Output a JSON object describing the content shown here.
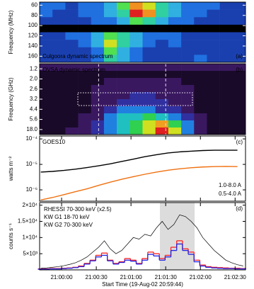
{
  "chart_data": [
    {
      "type": "heatmap",
      "title": "Culgoora dynamic spectrum",
      "panel_label": "(a)",
      "ylabel": "Frequency (MHz)",
      "ylim": [
        172,
        54
      ],
      "yticks": [
        60,
        80,
        100,
        120,
        140,
        160
      ],
      "colormap": [
        "#000000",
        "#101060",
        "#1a40b0",
        "#2070e0",
        "#30b0e0",
        "#30d0a0",
        "#50e050",
        "#d0e020",
        "#f09020",
        "#e02020"
      ],
      "z": [
        [
          3,
          3,
          2,
          3,
          3,
          4,
          6,
          8,
          7,
          5,
          4,
          3,
          3,
          3,
          2,
          2
        ],
        [
          3,
          2,
          2,
          3,
          3,
          4,
          5,
          9,
          8,
          5,
          4,
          3,
          3,
          2,
          2,
          2
        ],
        [
          2,
          2,
          2,
          2,
          3,
          3,
          4,
          6,
          5,
          4,
          3,
          3,
          2,
          2,
          2,
          2
        ],
        [
          0,
          0,
          0,
          0,
          0,
          0,
          0,
          0,
          0,
          0,
          0,
          0,
          0,
          0,
          0,
          0
        ],
        [
          2,
          2,
          3,
          3,
          4,
          6,
          5,
          4,
          3,
          3,
          3,
          2,
          2,
          2,
          2,
          2
        ],
        [
          2,
          2,
          2,
          3,
          4,
          7,
          5,
          4,
          3,
          2,
          3,
          2,
          2,
          2,
          2,
          2
        ],
        [
          2,
          2,
          2,
          2,
          3,
          6,
          4,
          3,
          2,
          2,
          2,
          2,
          2,
          2,
          2,
          2
        ],
        [
          2,
          2,
          2,
          2,
          3,
          5,
          4,
          3,
          2,
          2,
          2,
          2,
          3,
          2,
          2,
          2
        ]
      ]
    },
    {
      "type": "heatmap",
      "title": "OVSA dynamic spectrum",
      "panel_label": "(b)",
      "ylabel": "Frequency (GHz)",
      "y_categories": [
        "1.2",
        "2.0",
        "2.6",
        "3.2",
        "4.4",
        "5.6",
        "18.0"
      ],
      "xlim": [
        75581,
        75759
      ],
      "vlines": [
        75632,
        75690
      ],
      "colormap": [
        "#000000",
        "#1a0a2a",
        "#3a1860",
        "#3030a0",
        "#2080e0",
        "#20c0c0",
        "#30d050",
        "#d0e020",
        "#f0a020",
        "#e02020"
      ],
      "z": [
        [
          2,
          2,
          2,
          2,
          2,
          2,
          2,
          2,
          2,
          2,
          2,
          2,
          2,
          2,
          2,
          2
        ],
        [
          1,
          1,
          1,
          1,
          1,
          1,
          1,
          1,
          1,
          1,
          1,
          1,
          1,
          1,
          1,
          1
        ],
        [
          1,
          1,
          1,
          1,
          1,
          2,
          2,
          2,
          2,
          2,
          2,
          1,
          1,
          1,
          1,
          1
        ],
        [
          1,
          1,
          1,
          1,
          2,
          2,
          2,
          2,
          2,
          2,
          2,
          2,
          1,
          1,
          1,
          1
        ],
        [
          1,
          1,
          1,
          1,
          2,
          2,
          2,
          3,
          3,
          2,
          2,
          2,
          1,
          1,
          1,
          1
        ],
        [
          1,
          1,
          1,
          1,
          2,
          2,
          3,
          3,
          3,
          3,
          2,
          2,
          1,
          1,
          1,
          1
        ],
        [
          1,
          1,
          1,
          1,
          2,
          3,
          4,
          4,
          4,
          3,
          3,
          2,
          1,
          1,
          1,
          1
        ],
        [
          1,
          1,
          1,
          2,
          2,
          4,
          5,
          5,
          6,
          5,
          4,
          3,
          2,
          1,
          1,
          1
        ],
        [
          1,
          1,
          1,
          2,
          3,
          4,
          5,
          6,
          7,
          8,
          6,
          4,
          2,
          1,
          1,
          1
        ],
        [
          1,
          1,
          2,
          2,
          3,
          4,
          5,
          6,
          7,
          9,
          7,
          4,
          2,
          1,
          1,
          1
        ]
      ]
    },
    {
      "type": "line",
      "title": "GOES10",
      "panel_label": "(c)",
      "ylabel": "watts m⁻²",
      "log": true,
      "legend": "lower right",
      "xlim": [
        75581,
        75759
      ],
      "xticks": [
        75600,
        75630,
        75660,
        75690,
        75720,
        75750
      ],
      "ylim": [
        3.6e-07,
        0.00013
      ],
      "yticks": [
        {
          "value": 0.0001,
          "label": "10⁻⁴"
        },
        {
          "value": 1e-05,
          "label": "10⁻⁵"
        },
        {
          "value": 1e-06,
          "label": "10⁻⁶"
        }
      ],
      "x": [
        75582,
        75592,
        75602,
        75612,
        75622,
        75632,
        75642,
        75652,
        75662,
        75672,
        75682,
        75692,
        75702,
        75712,
        75722,
        75732,
        75742,
        75752
      ],
      "series": [
        {
          "name": "1.0-8.0 A",
          "color": "#000000",
          "values": [
            5e-06,
            5.3e-06,
            5.8e-06,
            6.5e-06,
            7.5e-06,
            8.8e-06,
            1.05e-05,
            1.3e-05,
            1.6e-05,
            2e-05,
            2.4e-05,
            2.8e-05,
            3.1e-05,
            3.3e-05,
            3.5e-05,
            3.6e-05,
            3.6e-05,
            3.6e-05
          ]
        },
        {
          "name": "0.5-4.0 A",
          "color": "#f07010",
          "values": [
            4e-07,
            5e-07,
            6.5e-07,
            8.5e-07,
            1.1e-06,
            1.5e-06,
            2e-06,
            2.6e-06,
            3.3e-06,
            4.1e-06,
            5e-06,
            5.9e-06,
            6.7e-06,
            7.4e-06,
            7.9e-06,
            8.2e-06,
            8.3e-06,
            8.2e-06
          ]
        }
      ]
    },
    {
      "type": "line",
      "panel_label": "(d)",
      "ylabel": "counts s⁻¹",
      "xlabel": "Start Time (19-Aug-02 20:59:44)",
      "legend": "upper left",
      "xlim": [
        75581,
        75759
      ],
      "xticks": [
        {
          "value": 75600,
          "label": "21:00:00"
        },
        {
          "value": 75630,
          "label": "21:00:30"
        },
        {
          "value": 75660,
          "label": "21:01:00"
        },
        {
          "value": 75690,
          "label": "21:01:30"
        },
        {
          "value": 75720,
          "label": "21:02:00"
        },
        {
          "value": 75750,
          "label": "21:02:30"
        }
      ],
      "ylim": [
        0,
        20800
      ],
      "yticks": [
        {
          "value": 5000,
          "label": "5×10³"
        },
        {
          "value": 10000,
          "label": "1×10⁴"
        },
        {
          "value": 15000,
          "label": "1.5×10⁴"
        },
        {
          "value": 20000,
          "label": "2×10⁴"
        }
      ],
      "shade": [
        75685,
        75715
      ],
      "shade_color": "#dcdcdc",
      "x": [
        75582,
        75587,
        75592,
        75597,
        75602,
        75607,
        75612,
        75617,
        75622,
        75627,
        75632,
        75637,
        75642,
        75647,
        75652,
        75657,
        75662,
        75667,
        75672,
        75677,
        75682,
        75687,
        75692,
        75697,
        75702,
        75707,
        75712,
        75717,
        75722,
        75727,
        75732,
        75737,
        75742,
        75747,
        75752,
        75757
      ],
      "series": [
        {
          "name": "RHESSI 70-300 keV (x2.5)",
          "color": "#ff2020",
          "step": true,
          "values": [
            300,
            300,
            400,
            400,
            500,
            600,
            800,
            1200,
            2000,
            3000,
            4500,
            5200,
            3000,
            2000,
            2500,
            3500,
            3000,
            2000,
            3500,
            5500,
            5000,
            3500,
            4500,
            7000,
            9000,
            6500,
            5500,
            3000,
            1500,
            1000,
            800,
            700,
            600,
            500,
            500,
            400
          ]
        },
        {
          "name": "KW G1 18-70 keV",
          "color": "#000000",
          "values": [
            500,
            600,
            800,
            1000,
            1300,
            1700,
            2200,
            3000,
            4000,
            5500,
            7000,
            9000,
            6500,
            5000,
            6000,
            8000,
            10000,
            9500,
            11000,
            10500,
            13000,
            15000,
            12500,
            14000,
            17000,
            16500,
            15000,
            13000,
            10000,
            8000,
            6000,
            4500,
            3000,
            2200,
            1600,
            1200
          ]
        },
        {
          "name": "KW G2 70-300 keV",
          "color": "#2020e0",
          "step": true,
          "values": [
            200,
            200,
            300,
            300,
            400,
            500,
            700,
            1000,
            1800,
            2800,
            4000,
            4500,
            2800,
            1800,
            2300,
            3000,
            2700,
            1800,
            3000,
            4800,
            4300,
            3000,
            4000,
            6000,
            8000,
            6000,
            4800,
            2500,
            1200,
            800,
            600,
            500,
            400,
            400,
            300,
            300
          ]
        }
      ]
    }
  ]
}
